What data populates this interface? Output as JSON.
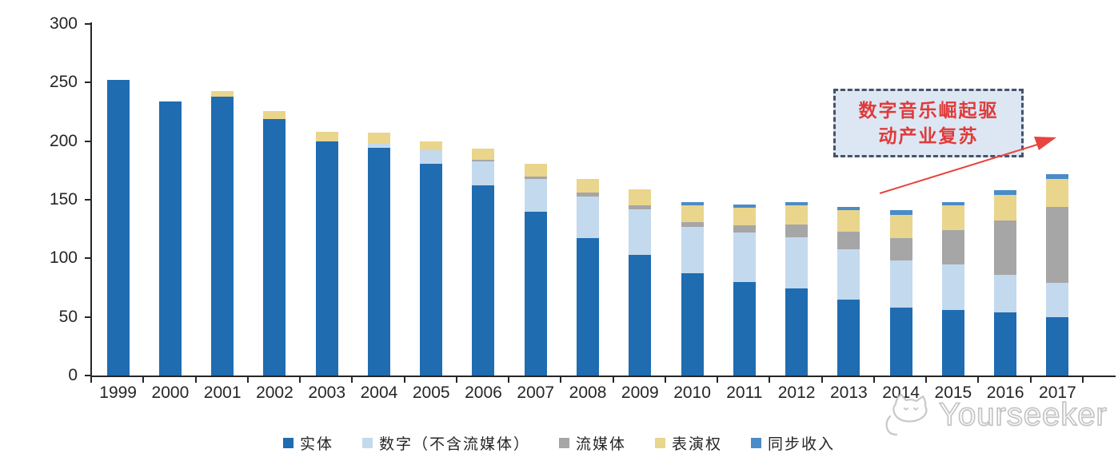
{
  "chart_data": {
    "type": "bar",
    "stacked": true,
    "title": "",
    "categories": [
      "1999",
      "2000",
      "2001",
      "2002",
      "2003",
      "2004",
      "2005",
      "2006",
      "2007",
      "2008",
      "2009",
      "2010",
      "2011",
      "2012",
      "2013",
      "2014",
      "2015",
      "2016",
      "2017"
    ],
    "series": [
      {
        "name": "实体",
        "color": "#1F6CB1",
        "values": [
          252,
          234,
          238,
          219,
          200,
          194,
          181,
          162,
          140,
          117,
          103,
          87,
          80,
          74,
          65,
          58,
          56,
          54,
          50
        ]
      },
      {
        "name": "数字（不含流媒体）",
        "color": "#C3D9EE",
        "values": [
          0,
          0,
          0,
          0,
          0,
          4,
          11,
          21,
          28,
          36,
          39,
          40,
          42,
          44,
          43,
          40,
          39,
          32,
          29
        ]
      },
      {
        "name": "流媒体",
        "color": "#A6A6A6",
        "values": [
          0,
          0,
          0,
          0,
          0,
          0,
          0,
          1,
          2,
          3,
          3,
          4,
          6,
          11,
          15,
          19,
          29,
          46,
          65
        ]
      },
      {
        "name": "表演权",
        "color": "#E9D58C",
        "values": [
          0,
          0,
          5,
          7,
          8,
          9,
          8,
          10,
          11,
          12,
          14,
          14,
          15,
          16,
          18,
          20,
          21,
          22,
          24
        ]
      },
      {
        "name": "同步收入",
        "color": "#4A8CC8",
        "values": [
          0,
          0,
          0,
          0,
          0,
          0,
          0,
          0,
          0,
          0,
          0,
          3,
          3,
          3,
          3,
          4,
          3,
          4,
          4
        ]
      }
    ],
    "ylim": [
      0,
      300
    ],
    "yticks": [
      0,
      50,
      100,
      150,
      200,
      250,
      300
    ],
    "grid": false,
    "legend_position": "bottom",
    "xlabel": "",
    "ylabel": ""
  },
  "annotation": {
    "text": "数字音乐崛起驱动产业复苏",
    "line1": "数字音乐崛起驱",
    "line2": "动产业复苏",
    "text_color": "#E03A3A",
    "box_fill": "#DCE7F3",
    "border_color": "#44546A",
    "arrow_color": "#E8433E"
  },
  "watermark": {
    "text": "Yourseeker",
    "color": "#C6C6C6"
  },
  "axis": {
    "line_color": "#262626",
    "label_color": "#262626"
  }
}
